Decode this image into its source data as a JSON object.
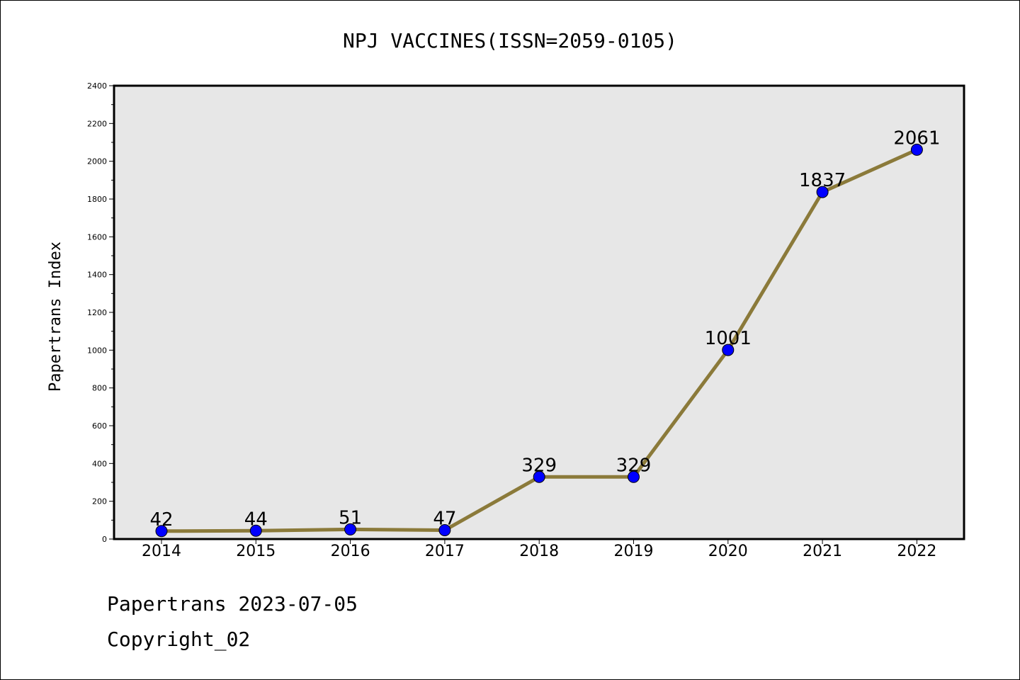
{
  "chart_data": {
    "type": "line",
    "title": "NPJ VACCINES(ISSN=2059-0105)",
    "xlabel": "",
    "ylabel": "Papertrans Index",
    "categories": [
      "2014",
      "2015",
      "2016",
      "2017",
      "2018",
      "2019",
      "2020",
      "2021",
      "2022"
    ],
    "series": [
      {
        "values": [
          42,
          44,
          51,
          47,
          329,
          329,
          1001,
          1837,
          2061
        ]
      }
    ],
    "data_labels": [
      "42",
      "44",
      "51",
      "47",
      "329",
      "329",
      "1001",
      "1837",
      "2061"
    ],
    "ylim": [
      0,
      2400
    ],
    "yticks": [
      0,
      200,
      400,
      600,
      800,
      1000,
      1200,
      1400,
      1600,
      1800,
      2000,
      2200,
      2400
    ],
    "ytick_labels": [
      "0",
      "200",
      "400",
      "600",
      "800",
      "1000",
      "1200",
      "1400",
      "1600",
      "1800",
      "2000",
      "2200",
      "2400"
    ],
    "grid": false,
    "legend": "none",
    "colors": {
      "line": "#8b7a3a",
      "marker": "#0000ff",
      "plot_background": "#e7e7e7",
      "page_background": "#ffffff"
    }
  },
  "footer": {
    "date_line": "Papertrans 2023-07-05",
    "copyright_line": "Copyright_02"
  }
}
